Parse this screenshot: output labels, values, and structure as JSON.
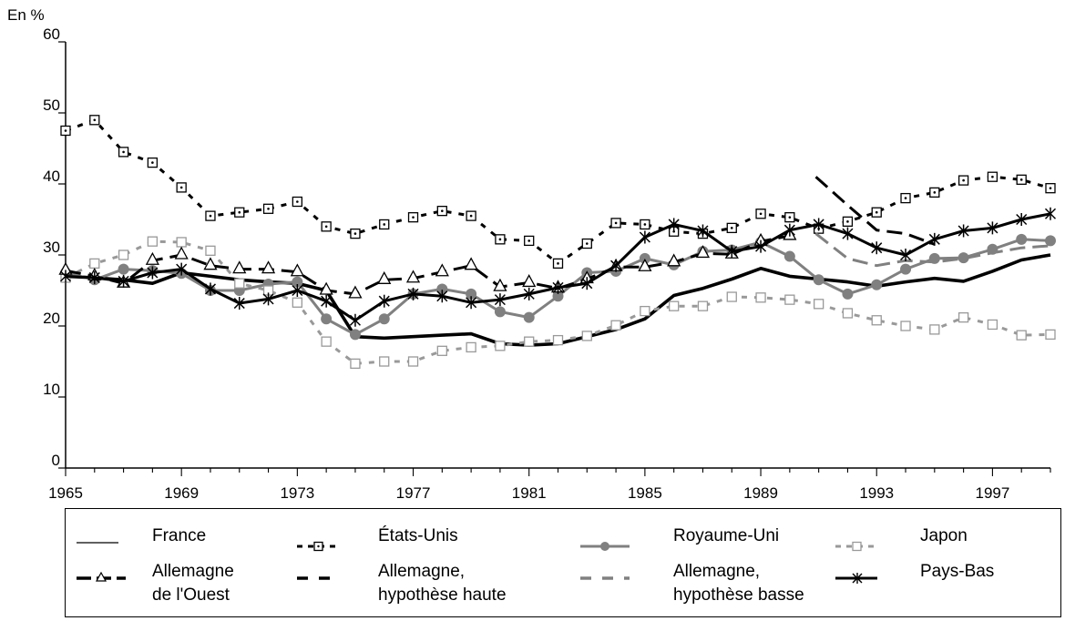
{
  "chart_data": {
    "type": "line",
    "ylabel": "En %",
    "ylim": [
      0,
      60
    ],
    "yticks": [
      "0",
      "10",
      "20",
      "30",
      "40",
      "50",
      "60"
    ],
    "xlim": [
      1965,
      1999
    ],
    "xticks": [
      "1965",
      "1969",
      "1973",
      "1977",
      "1981",
      "1985",
      "1989",
      "1993",
      "1997"
    ],
    "xtick_values": [
      1965,
      1969,
      1973,
      1977,
      1981,
      1985,
      1989,
      1993,
      1997
    ],
    "series": [
      {
        "name": "France",
        "color": "#000000",
        "dash": "solid",
        "marker": "none",
        "x": [
          1965,
          1966,
          1967,
          1968,
          1969,
          1970,
          1971,
          1972,
          1973,
          1974,
          1975,
          1976,
          1977,
          1978,
          1979,
          1980,
          1981,
          1982,
          1983,
          1984,
          1985,
          1986,
          1987,
          1988,
          1989,
          1990,
          1991,
          1992,
          1993,
          1994,
          1995,
          1996,
          1997,
          1998,
          1999
        ],
        "y": [
          27,
          26.8,
          26.5,
          26,
          27.5,
          27,
          26.5,
          26.2,
          26,
          25,
          18.5,
          18.3,
          18.5,
          18.7,
          18.9,
          17.5,
          17.3,
          17.5,
          18.5,
          19.5,
          21,
          24.3,
          25.3,
          26.6,
          28.1,
          27,
          26.6,
          26.2,
          25.6,
          26.2,
          26.7,
          26.3,
          27.7,
          29.3,
          30
        ]
      },
      {
        "name": "États-Unis",
        "color": "#000000",
        "dash": "dashed",
        "marker": "dotted-square",
        "x": [
          1965,
          1966,
          1967,
          1968,
          1969,
          1970,
          1971,
          1972,
          1973,
          1974,
          1975,
          1976,
          1977,
          1978,
          1979,
          1980,
          1981,
          1982,
          1983,
          1984,
          1985,
          1986,
          1987,
          1988,
          1989,
          1990,
          1991,
          1992,
          1993,
          1994,
          1995,
          1996,
          1997,
          1998,
          1999
        ],
        "y": [
          47.5,
          49,
          44.5,
          43,
          39.5,
          35.5,
          36,
          36.5,
          37.5,
          34,
          33,
          34.3,
          35.3,
          36.2,
          35.5,
          32.2,
          32,
          28.8,
          31.6,
          34.5,
          34.3,
          33.3,
          33,
          33.8,
          35.8,
          35.3,
          33.7,
          34.7,
          36,
          38,
          38.8,
          40.5,
          41,
          40.6,
          39.4
        ]
      },
      {
        "name": "Royaume-Uni",
        "color": "#808080",
        "dash": "solid",
        "marker": "filled-circle",
        "x": [
          1965,
          1966,
          1967,
          1968,
          1969,
          1970,
          1971,
          1972,
          1973,
          1974,
          1975,
          1976,
          1977,
          1978,
          1979,
          1980,
          1981,
          1982,
          1983,
          1984,
          1985,
          1986,
          1987,
          1988,
          1989,
          1990,
          1991,
          1992,
          1993,
          1994,
          1995,
          1996,
          1997,
          1998,
          1999
        ],
        "y": [
          27.5,
          26.5,
          28,
          27.8,
          27.4,
          25,
          25,
          25.9,
          26.2,
          21,
          18.8,
          21,
          24.5,
          25.2,
          24.5,
          22,
          21.2,
          24.2,
          27.5,
          27.7,
          29.5,
          28.6,
          30.5,
          30.7,
          31.8,
          29.8,
          26.5,
          24.5,
          25.8,
          28,
          29.5,
          29.6,
          30.8,
          32.2,
          32
        ]
      },
      {
        "name": "Japon",
        "color": "#999999",
        "dash": "dashed",
        "marker": "hollow-square",
        "x": [
          1965,
          1966,
          1967,
          1968,
          1969,
          1970,
          1971,
          1972,
          1973,
          1974,
          1975,
          1976,
          1977,
          1978,
          1979,
          1980,
          1981,
          1982,
          1983,
          1984,
          1985,
          1986,
          1987,
          1988,
          1989,
          1990,
          1991,
          1992,
          1993,
          1994,
          1995,
          1996,
          1997,
          1998,
          1999
        ],
        "y": [
          26.8,
          28.8,
          30,
          31.9,
          31.8,
          30.6,
          26,
          25,
          23.3,
          17.8,
          14.7,
          15,
          15,
          16.5,
          17,
          17.2,
          17.8,
          18,
          18.6,
          20.1,
          22.1,
          22.8,
          22.8,
          24.1,
          24,
          23.7,
          23.1,
          21.8,
          20.8,
          20,
          19.5,
          21.2,
          20.2,
          18.7,
          18.8
        ]
      },
      {
        "name": "Allemagne de l'Ouest",
        "color": "#000000",
        "dash": "long-dash",
        "marker": "hollow-triangle",
        "x": [
          1965,
          1966,
          1967,
          1968,
          1969,
          1970,
          1971,
          1972,
          1973,
          1974,
          1975,
          1976,
          1977,
          1978,
          1979,
          1980,
          1981,
          1982,
          1983,
          1984,
          1985,
          1986,
          1987,
          1988,
          1989,
          1990,
          1991,
          1992,
          1993,
          1994,
          1995,
          1996,
          1997,
          1998,
          1999
        ],
        "y": [
          27.8,
          27,
          26,
          29.2,
          30,
          28.5,
          28,
          28,
          27.6,
          25,
          24.5,
          26.5,
          26.7,
          27.6,
          28.5,
          25.5,
          26.1,
          25.3,
          26.6,
          28.3,
          28.3,
          29,
          30.2,
          30.1,
          31.9,
          32.7,
          null,
          null,
          null,
          null,
          null,
          null,
          null,
          null,
          null
        ]
      },
      {
        "name": "Allemagne, hypothèse haute",
        "color": "#000000",
        "dash": "long-dash",
        "marker": "none",
        "x": [
          1990.9,
          1992,
          1993,
          1994,
          1995
        ],
        "y": [
          41,
          37,
          33.5,
          33,
          31.5
        ]
      },
      {
        "name": "Allemagne, hypothèse basse",
        "color": "#808080",
        "dash": "long-dash",
        "marker": "none",
        "x": [
          1990.9,
          1992,
          1993,
          1994,
          1995,
          1996,
          1997,
          1998,
          1999
        ],
        "y": [
          33,
          29.5,
          28.5,
          29.2,
          29,
          29.5,
          30.3,
          31,
          31.3
        ]
      },
      {
        "name": "Pays-Bas",
        "color": "#000000",
        "dash": "solid",
        "marker": "star",
        "x": [
          1965,
          1966,
          1967,
          1968,
          1969,
          1970,
          1971,
          1972,
          1973,
          1974,
          1975,
          1976,
          1977,
          1978,
          1979,
          1980,
          1981,
          1982,
          1983,
          1984,
          1985,
          1986,
          1987,
          1988,
          1989,
          1990,
          1991,
          1992,
          1993,
          1994,
          1995,
          1996,
          1997,
          1998,
          1999
        ],
        "y": [
          27,
          26.8,
          26.3,
          27.5,
          28,
          25.2,
          23.2,
          23.8,
          25,
          23.5,
          20.8,
          23.5,
          24.5,
          24.2,
          23.3,
          23.7,
          24.5,
          25.4,
          26,
          28.5,
          32.5,
          34.3,
          33.4,
          30.5,
          31.2,
          33.5,
          34.3,
          33,
          31,
          30,
          32.2,
          33.4,
          33.8,
          35,
          35.8
        ]
      }
    ]
  },
  "legend": {
    "items": [
      {
        "label": "France",
        "line2": ""
      },
      {
        "label": "États-Unis",
        "line2": ""
      },
      {
        "label": "Royaume-Uni",
        "line2": ""
      },
      {
        "label": "Japon",
        "line2": ""
      },
      {
        "label": "Allemagne",
        "line2": "de l'Ouest"
      },
      {
        "label": "Allemagne,",
        "line2": "hypothèse haute"
      },
      {
        "label": "Allemagne,",
        "line2": "hypothèse basse"
      },
      {
        "label": "Pays-Bas",
        "line2": ""
      }
    ]
  }
}
